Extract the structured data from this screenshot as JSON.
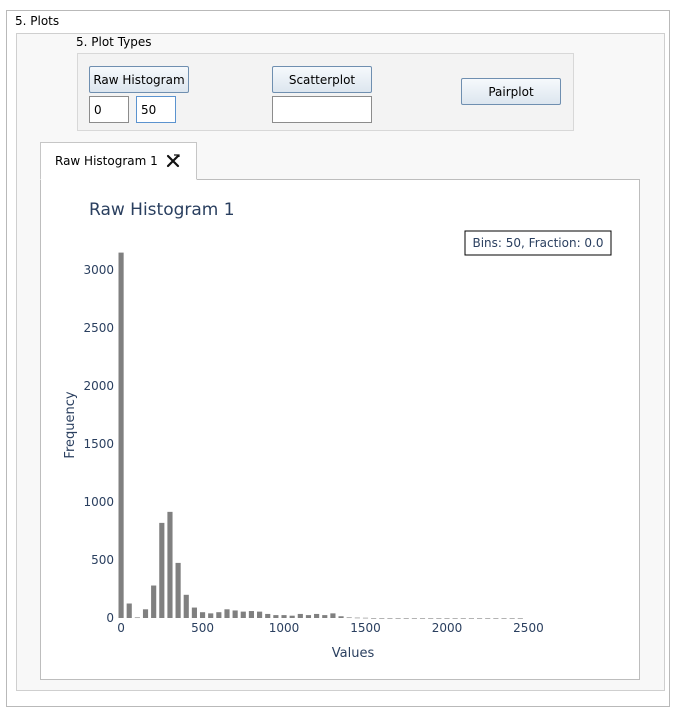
{
  "section": {
    "title": "5. Plots"
  },
  "plot_types": {
    "title": "5. Plot Types",
    "raw_histogram_button": "Raw Histogram",
    "bins_min_value": "0",
    "bins_max_value": "50",
    "scatterplot_button": "Scatterplot",
    "scatterplot_input_value": "",
    "pairplot_button": "Pairplot"
  },
  "tabs": [
    {
      "label": "Raw Histogram 1",
      "close_icon": "close-x-icon"
    }
  ],
  "chart_data": {
    "type": "bar",
    "title": "Raw Histogram 1",
    "annotation": "Bins: 50, Fraction: 0.0",
    "xlabel": "Values",
    "ylabel": "Frequency",
    "x_bin_width": 50,
    "x_bin_start": 0,
    "xlim": [
      -25,
      3025
    ],
    "ylim": [
      0,
      3250
    ],
    "xticks": [
      0,
      500,
      1000,
      1500,
      2000,
      2500
    ],
    "yticks": [
      0,
      500,
      1000,
      1500,
      2000,
      2500,
      3000
    ],
    "values": [
      3150,
      125,
      5,
      75,
      280,
      820,
      915,
      475,
      200,
      90,
      50,
      40,
      50,
      75,
      65,
      55,
      60,
      55,
      35,
      25,
      25,
      20,
      35,
      25,
      35,
      25,
      40,
      15,
      5,
      3,
      2,
      0,
      0,
      0,
      0,
      0,
      0,
      0,
      0,
      0,
      0,
      0,
      0,
      0,
      0,
      0,
      0,
      0,
      0,
      0
    ],
    "bar_color": "#808080",
    "title_color": "#2a3f5f",
    "grid": false,
    "legend": "none"
  }
}
